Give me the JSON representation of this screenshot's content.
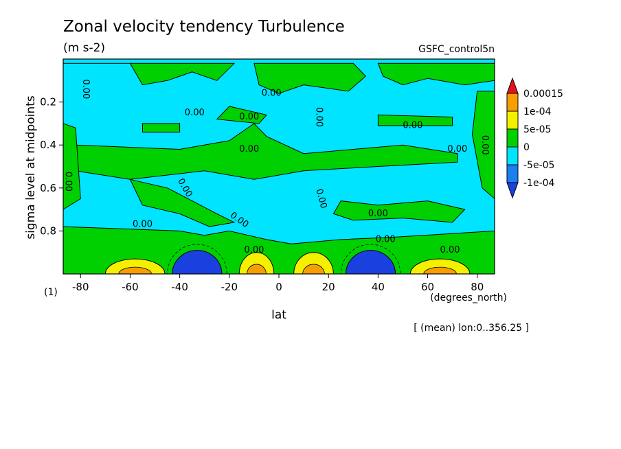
{
  "chart_data": {
    "type": "heatmap",
    "title": "Zonal velocity tendency Turbulence",
    "units": "(m s-2)",
    "experiment": "GSFC_control5n",
    "xlabel": "lat",
    "xunits": "(degrees_north)",
    "ylabel": "sigma level at midpoints",
    "ylabel_index": "(1)",
    "footnote": "[ (mean) lon:0..356.25 ]",
    "xlim": [
      -87,
      87
    ],
    "ylim": [
      0.0,
      1.0
    ],
    "y_inverted": true,
    "x_ticks": [
      {
        "value": -80,
        "label": "-80"
      },
      {
        "value": -60,
        "label": "-60"
      },
      {
        "value": -40,
        "label": "-40"
      },
      {
        "value": -20,
        "label": "-20"
      },
      {
        "value": 0,
        "label": "0"
      },
      {
        "value": 20,
        "label": "20"
      },
      {
        "value": 40,
        "label": "40"
      },
      {
        "value": 60,
        "label": "60"
      },
      {
        "value": 80,
        "label": "80"
      }
    ],
    "y_ticks": [
      {
        "value": 0.2,
        "label": "0.2"
      },
      {
        "value": 0.4,
        "label": "0.4"
      },
      {
        "value": 0.6,
        "label": "0.6"
      },
      {
        "value": 0.8,
        "label": "0.8"
      }
    ],
    "colorbar": [
      {
        "label": "0.00015",
        "color": "#e8101a"
      },
      {
        "label": "1e-04",
        "color": "#f5a000"
      },
      {
        "label": "5e-05",
        "color": "#f5f000"
      },
      {
        "label": "0",
        "color": "#00d000"
      },
      {
        "label": "-5e-05",
        "color": "#00e4ff"
      },
      {
        "label": "-1e-04",
        "color": "#1a80f0"
      }
    ],
    "colorbar_bottom_color": "#1a40e0",
    "background_color": "#00e4ff",
    "band_color": "#00d000",
    "positive_color": "#f5f000",
    "strong_positive_color": "#f5a000",
    "negative_color": "#1a40e0",
    "contour_labels": [
      {
        "text": "0.00",
        "lat": -78,
        "sigma": 0.14,
        "rotate": 90
      },
      {
        "text": "0.00",
        "lat": -85,
        "sigma": 0.57,
        "rotate": 90
      },
      {
        "text": "0.00",
        "lat": -34,
        "sigma": 0.25,
        "rotate": 0
      },
      {
        "text": "0.00",
        "lat": -12,
        "sigma": 0.27,
        "rotate": 0
      },
      {
        "text": "0.00",
        "lat": -12,
        "sigma": 0.42,
        "rotate": 0
      },
      {
        "text": "0.00",
        "lat": -3,
        "sigma": 0.16,
        "rotate": 0
      },
      {
        "text": "0.00",
        "lat": 16,
        "sigma": 0.27,
        "rotate": 90
      },
      {
        "text": "0.00",
        "lat": 17,
        "sigma": 0.65,
        "rotate": 75
      },
      {
        "text": "0.00",
        "lat": -38,
        "sigma": 0.6,
        "rotate": 60
      },
      {
        "text": "0.00",
        "lat": -16,
        "sigma": 0.75,
        "rotate": 35
      },
      {
        "text": "0.00",
        "lat": -55,
        "sigma": 0.77,
        "rotate": 0
      },
      {
        "text": "0.00",
        "lat": 40,
        "sigma": 0.72,
        "rotate": 0
      },
      {
        "text": "0.00",
        "lat": 54,
        "sigma": 0.31,
        "rotate": 0
      },
      {
        "text": "0.00",
        "lat": 72,
        "sigma": 0.42,
        "rotate": 0
      },
      {
        "text": "0.00",
        "lat": 83,
        "sigma": 0.4,
        "rotate": 90
      },
      {
        "text": "0.00",
        "lat": 43,
        "sigma": 0.84,
        "rotate": 0
      },
      {
        "text": "0.00",
        "lat": 69,
        "sigma": 0.89,
        "rotate": 0
      },
      {
        "text": "0.00",
        "lat": -10,
        "sigma": 0.89,
        "rotate": 0
      }
    ],
    "surface_features": [
      {
        "type": "negative",
        "lat_center": -33,
        "half_width": 10,
        "top_sigma": 0.89
      },
      {
        "type": "negative",
        "lat_center": 37,
        "half_width": 10,
        "top_sigma": 0.89
      },
      {
        "type": "positive",
        "lat_center": -9,
        "half_width": 7,
        "top_sigma": 0.9
      },
      {
        "type": "positive",
        "lat_center": 14,
        "half_width": 8,
        "top_sigma": 0.9
      },
      {
        "type": "positive",
        "lat_center": -58,
        "half_width": 12,
        "top_sigma": 0.93
      },
      {
        "type": "positive",
        "lat_center": 65,
        "half_width": 12,
        "top_sigma": 0.93
      }
    ]
  }
}
